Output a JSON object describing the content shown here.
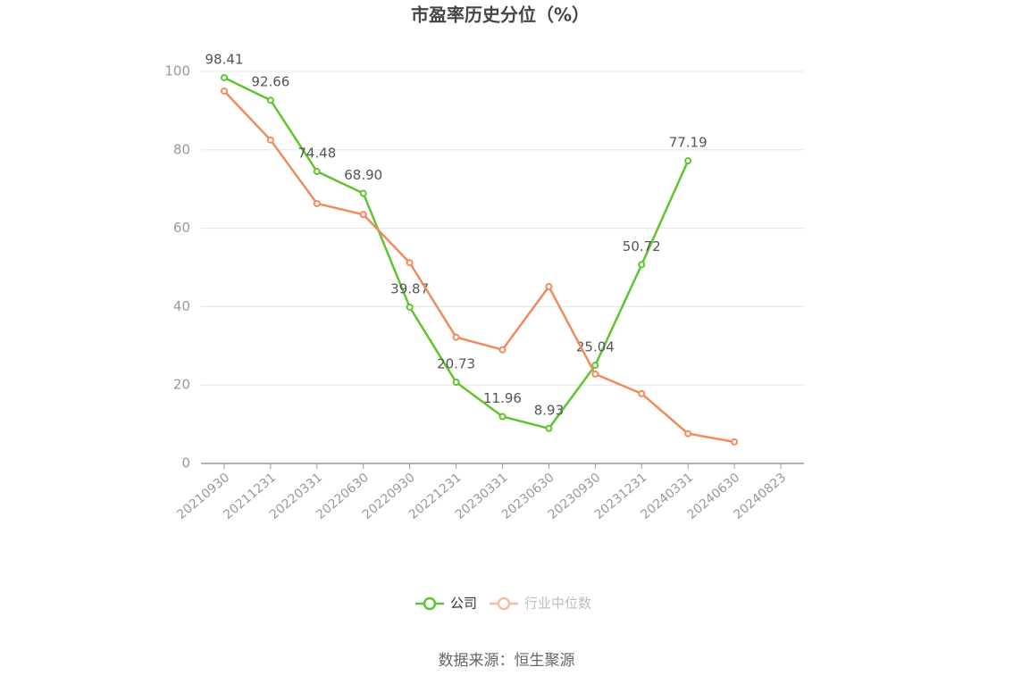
{
  "chart_data": {
    "type": "line",
    "title": "市盈率历史分位（%）",
    "categories": [
      "20210930",
      "20211231",
      "20220331",
      "20220630",
      "20220930",
      "20221231",
      "20230331",
      "20230630",
      "20230930",
      "20231231",
      "20240331",
      "20240630",
      "20240823"
    ],
    "series": [
      {
        "name": "公司",
        "color": "#5ec52f",
        "values": [
          98.41,
          92.66,
          74.48,
          68.9,
          39.87,
          20.73,
          11.96,
          8.93,
          25.04,
          50.72,
          77.19,
          null,
          null
        ],
        "value_labels": [
          "98.41",
          "92.66",
          "74.48",
          "68.90",
          "39.87",
          "20.73",
          "11.96",
          "8.93",
          "25.04",
          "50.72",
          "77.19",
          null,
          null
        ]
      },
      {
        "name": "行业中位数",
        "color": "#f08b5c",
        "values": [
          95.0,
          82.5,
          66.3,
          63.5,
          51.2,
          32.2,
          29.0,
          45.1,
          22.8,
          17.8,
          7.6,
          5.5,
          null
        ]
      }
    ],
    "ylim": [
      0,
      100
    ],
    "yticks": [
      0,
      20,
      40,
      60,
      80,
      100
    ],
    "grid": true,
    "source": "数据来源：恒生聚源"
  }
}
